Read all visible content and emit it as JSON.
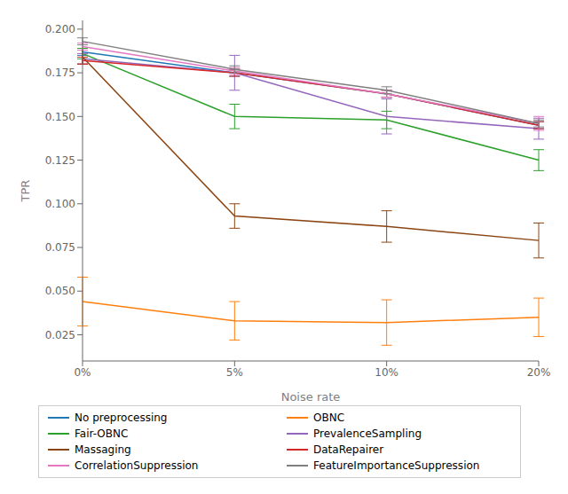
{
  "chart_data": {
    "type": "line",
    "xlabel": "Noise rate",
    "ylabel": "TPR",
    "categories": [
      "0%",
      "5%",
      "10%",
      "20%"
    ],
    "series": [
      {
        "name": "No preprocessing",
        "color": "#1f77b4",
        "values": [
          0.187,
          0.175,
          0.163,
          0.145
        ],
        "yerr": [
          0.002,
          0.002,
          0.002,
          0.002
        ]
      },
      {
        "name": "OBNC",
        "color": "#ff7f0e",
        "values": [
          0.044,
          0.033,
          0.032,
          0.035
        ],
        "yerr": [
          0.014,
          0.011,
          0.013,
          0.011
        ]
      },
      {
        "name": "Fair-OBNC",
        "color": "#2ca02c",
        "values": [
          0.186,
          0.15,
          0.148,
          0.125
        ],
        "yerr": [
          0.003,
          0.007,
          0.005,
          0.006
        ]
      },
      {
        "name": "PrevalenceSampling",
        "color": "#9467bd",
        "values": [
          0.183,
          0.175,
          0.15,
          0.143
        ],
        "yerr": [
          0.003,
          0.01,
          0.01,
          0.006
        ]
      },
      {
        "name": "Massaging",
        "color": "#8B4513",
        "values": [
          0.184,
          0.093,
          0.087,
          0.079
        ],
        "yerr": [
          0.004,
          0.007,
          0.009,
          0.01
        ]
      },
      {
        "name": "DataRepairer",
        "color": "#d62728",
        "values": [
          0.182,
          0.175,
          0.163,
          0.145
        ],
        "yerr": [
          0.002,
          0.002,
          0.002,
          0.002
        ]
      },
      {
        "name": "CorrelationSuppression",
        "color": "#e377c2",
        "values": [
          0.19,
          0.176,
          0.163,
          0.146
        ],
        "yerr": [
          0.002,
          0.002,
          0.002,
          0.004
        ]
      },
      {
        "name": "FeatureImportanceSuppression",
        "color": "#7f7f7f",
        "values": [
          0.193,
          0.177,
          0.165,
          0.146
        ],
        "yerr": [
          0.002,
          0.002,
          0.002,
          0.002
        ]
      }
    ],
    "ylim": [
      0.01,
      0.205
    ],
    "yticks": [
      0.025,
      {
        "value": 0.05,
        "label": "0.050"
      },
      0.075,
      {
        "value": 0.1,
        "label": "0.100"
      },
      0.125,
      {
        "value": 0.15,
        "label": "0.150"
      },
      0.175,
      {
        "value": 0.2,
        "label": "0.200"
      }
    ],
    "grid": false,
    "legend": "bottom"
  }
}
